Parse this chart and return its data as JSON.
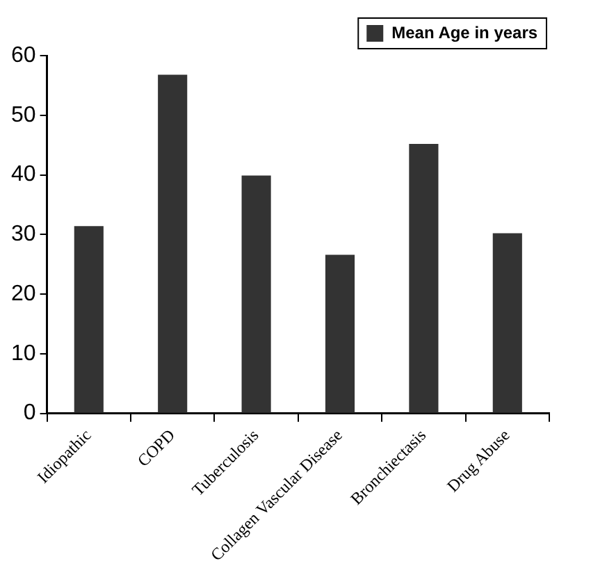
{
  "chart_data": {
    "type": "bar",
    "categories": [
      "Idiopathic",
      "COPD",
      "Tuberculosis",
      "Collagen Vascular Disease",
      "Bronchiectasis",
      "Drug Abuse"
    ],
    "series": [
      {
        "name": "Mean Age in years",
        "color": "#333333",
        "values": [
          31.4,
          56.8,
          39.9,
          26.6,
          45.2,
          30.2
        ]
      }
    ],
    "ylim": [
      0,
      60
    ],
    "yticks": [
      0,
      10,
      20,
      30,
      40,
      50,
      60
    ],
    "grid": false,
    "legend": "top right"
  }
}
